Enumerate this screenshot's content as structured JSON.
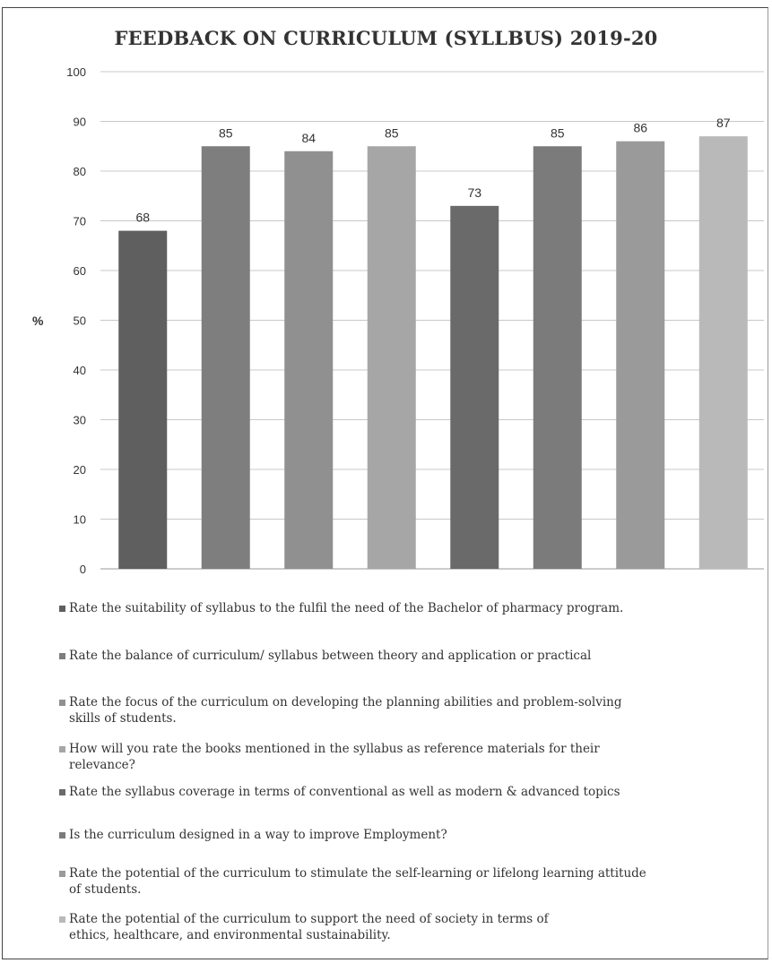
{
  "chart_data": {
    "type": "bar",
    "title": "FEEDBACK ON CURRICULUM (SYLLBUS) 2019-20",
    "ylabel": "%",
    "xlabel": "",
    "ylim": [
      0,
      100
    ],
    "yticks": [
      0,
      10,
      20,
      30,
      40,
      50,
      60,
      70,
      80,
      90,
      100
    ],
    "grid": true,
    "legend_position": "bottom",
    "series": [
      {
        "name": "Rate the suitability of syllabus to the fulfil the need of the Bachelor of pharmacy program.",
        "value": 68,
        "color": "#5f5f5f"
      },
      {
        "name": "Rate the balance of curriculum/ syllabus between theory and application or practical",
        "value": 85,
        "color": "#7e7e7e"
      },
      {
        "name": "Rate the focus of the curriculum on developing the planning abilities and problem-solving\nskills of students.",
        "value": 84,
        "color": "#909090"
      },
      {
        "name": "How will you rate the books mentioned in the syllabus as reference materials for their\nrelevance?",
        "value": 85,
        "color": "#a6a6a6"
      },
      {
        "name": "Rate the syllabus coverage in terms of conventional as well as modern & advanced topics",
        "value": 73,
        "color": "#6a6a6a"
      },
      {
        "name": "Is the curriculum designed in a way to improve Employment?",
        "value": 85,
        "color": "#7b7b7b"
      },
      {
        "name": "Rate the potential of the curriculum to stimulate the self-learning or lifelong learning attitude\nof students.",
        "value": 86,
        "color": "#9a9a9a"
      },
      {
        "name": "Rate the potential of the curriculum to support the need of society in terms of\nethics, healthcare, and environmental sustainability.",
        "value": 87,
        "color": "#b9b9b9"
      }
    ]
  }
}
